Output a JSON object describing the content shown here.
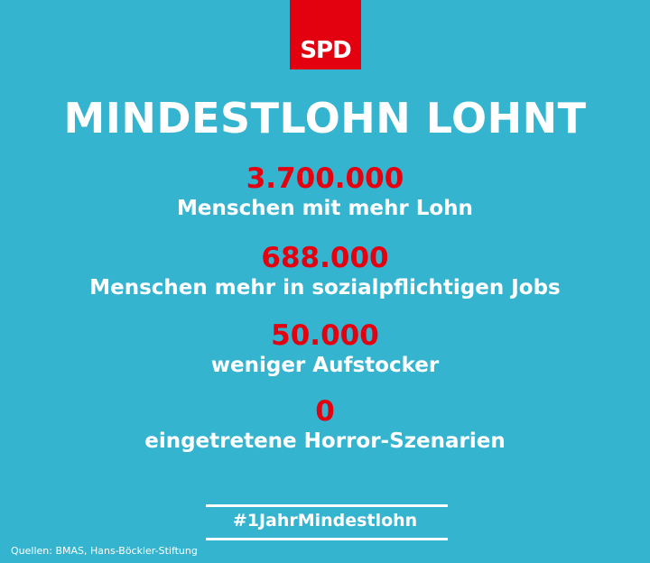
{
  "logo": "SPD",
  "title": "MINDESTLOHN LOHNT",
  "facts": [
    {
      "number": "3.700.000",
      "text": "Menschen mit mehr Lohn"
    },
    {
      "number": "688.000",
      "text": "Menschen mehr in sozialpflichtigen Jobs"
    },
    {
      "number": "50.000",
      "text": "weniger Aufstocker"
    },
    {
      "number": "0",
      "text": "eingetretene Horror-Szenarien"
    }
  ],
  "hashtag": "#1JahrMindestlohn",
  "source": "Quellen: BMAS, Hans-Böckler-Stiftung"
}
